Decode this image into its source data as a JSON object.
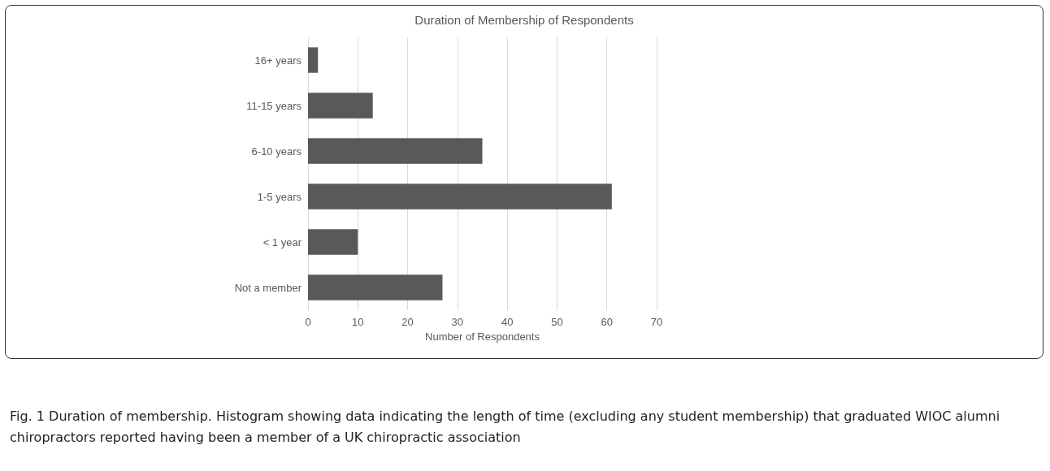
{
  "chart_data": {
    "type": "bar",
    "orientation": "horizontal",
    "title": "Duration of Membership of Respondents",
    "xlabel": "Number of Respondents",
    "categories": [
      "16+ years",
      "11-15 years",
      "6-10 years",
      "1-5 years",
      "< 1 year",
      "Not a member"
    ],
    "values": [
      2,
      13,
      35,
      61,
      10,
      27
    ],
    "color": "#595959",
    "xlim": [
      0,
      70
    ],
    "xticks": [
      0,
      10,
      20,
      30,
      40,
      50,
      60,
      70
    ],
    "grid": "x",
    "annotations": [
      "Fig. 1 Duration of membership. Histogram showing data indicating the length of time (excluding any student membership) that graduated WIOC alumni chiropractors reported having been a member of a UK chiropractic association"
    ]
  }
}
